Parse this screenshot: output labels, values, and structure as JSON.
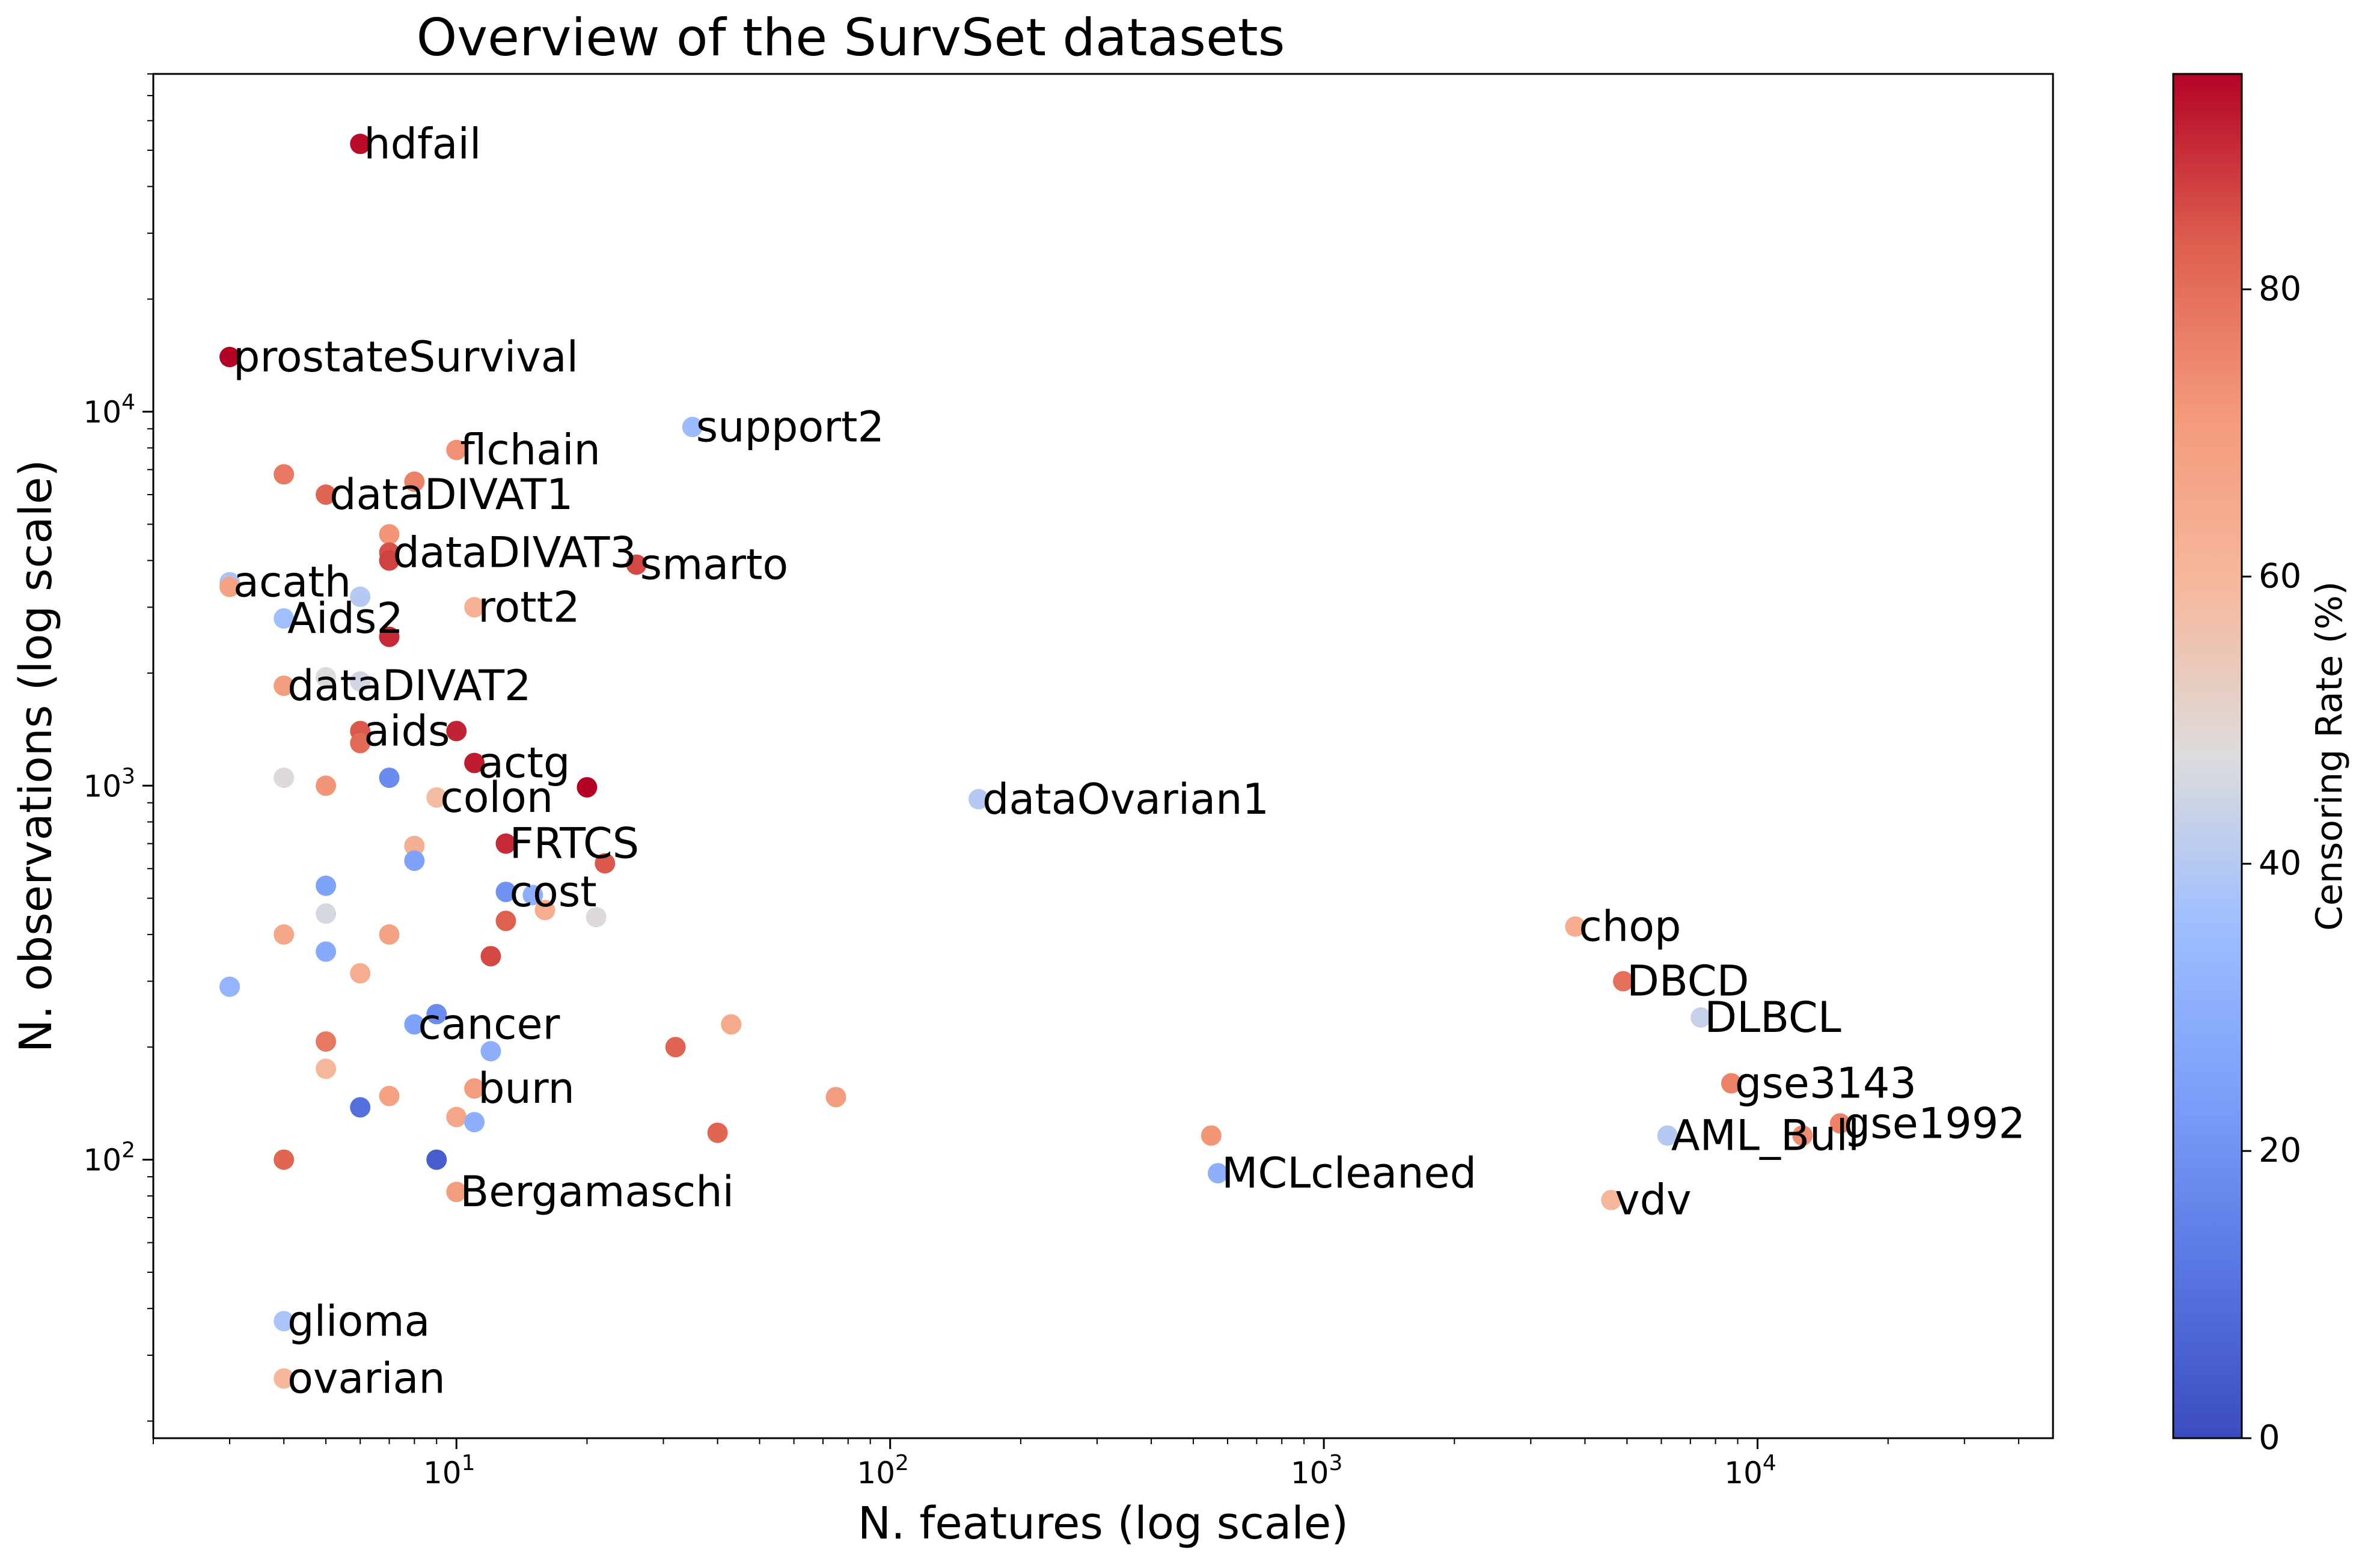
{
  "chart_data": {
    "type": "scatter",
    "title": "Overview of the SurvSet datasets",
    "xlabel": "N. features (log scale)",
    "ylabel": "N. observations (log scale)",
    "x_scale": "log",
    "y_scale": "log",
    "xlim": [
      2.0,
      48000
    ],
    "ylim": [
      18,
      80000
    ],
    "x_ticks": [
      {
        "value": 10,
        "label_base": "10",
        "label_exp": "1"
      },
      {
        "value": 100,
        "label_base": "10",
        "label_exp": "2"
      },
      {
        "value": 1000,
        "label_base": "10",
        "label_exp": "3"
      },
      {
        "value": 10000,
        "label_base": "10",
        "label_exp": "4"
      }
    ],
    "y_ticks": [
      {
        "value": 100,
        "label_base": "10",
        "label_exp": "2"
      },
      {
        "value": 1000,
        "label_base": "10",
        "label_exp": "3"
      },
      {
        "value": 10000,
        "label_base": "10",
        "label_exp": "4"
      }
    ],
    "colorbar": {
      "label": "Censoring Rate (%)",
      "min": 0,
      "max": 95,
      "ticks": [
        0,
        20,
        40,
        60,
        80
      ],
      "colormap": "coolwarm"
    },
    "grid": false,
    "points": [
      {
        "x": 6,
        "y": 52000,
        "c": 94,
        "label": "hdfail"
      },
      {
        "x": 3,
        "y": 14000,
        "c": 95,
        "label": "prostateSurvival"
      },
      {
        "x": 35,
        "y": 9100,
        "c": 35,
        "label": "support2"
      },
      {
        "x": 10,
        "y": 7900,
        "c": 73,
        "label": "flchain"
      },
      {
        "x": 4,
        "y": 6800,
        "c": 78,
        "label": ""
      },
      {
        "x": 8,
        "y": 6500,
        "c": 76,
        "label": ""
      },
      {
        "x": 5,
        "y": 6000,
        "c": 82,
        "label": "dataDIVAT1"
      },
      {
        "x": 7,
        "y": 4700,
        "c": 72,
        "label": ""
      },
      {
        "x": 7,
        "y": 4200,
        "c": 85,
        "label": "dataDIVAT3"
      },
      {
        "x": 7,
        "y": 4000,
        "c": 87,
        "label": ""
      },
      {
        "x": 26,
        "y": 3900,
        "c": 86,
        "label": "smarto"
      },
      {
        "x": 3,
        "y": 3500,
        "c": 38,
        "label": "acath"
      },
      {
        "x": 3,
        "y": 3400,
        "c": 68,
        "label": ""
      },
      {
        "x": 6,
        "y": 3200,
        "c": 40,
        "label": ""
      },
      {
        "x": 11,
        "y": 3000,
        "c": 62,
        "label": "rott2"
      },
      {
        "x": 4,
        "y": 2800,
        "c": 36,
        "label": "Aids2"
      },
      {
        "x": 7,
        "y": 2500,
        "c": 90,
        "label": ""
      },
      {
        "x": 5,
        "y": 1950,
        "c": 47,
        "label": ""
      },
      {
        "x": 6,
        "y": 1900,
        "c": 45,
        "label": ""
      },
      {
        "x": 4,
        "y": 1850,
        "c": 70,
        "label": "dataDIVAT2"
      },
      {
        "x": 6,
        "y": 1400,
        "c": 84,
        "label": "aids"
      },
      {
        "x": 10,
        "y": 1400,
        "c": 91,
        "label": ""
      },
      {
        "x": 6,
        "y": 1300,
        "c": 81,
        "label": ""
      },
      {
        "x": 11,
        "y": 1150,
        "c": 92,
        "label": "actg"
      },
      {
        "x": 4,
        "y": 1050,
        "c": 48,
        "label": ""
      },
      {
        "x": 7,
        "y": 1050,
        "c": 18,
        "label": ""
      },
      {
        "x": 5,
        "y": 1000,
        "c": 72,
        "label": ""
      },
      {
        "x": 20,
        "y": 990,
        "c": 96,
        "label": ""
      },
      {
        "x": 9,
        "y": 930,
        "c": 58,
        "label": "colon"
      },
      {
        "x": 160,
        "y": 920,
        "c": 40,
        "label": "dataOvarian1"
      },
      {
        "x": 13,
        "y": 700,
        "c": 90,
        "label": "FRTCS"
      },
      {
        "x": 8,
        "y": 690,
        "c": 63,
        "label": ""
      },
      {
        "x": 8,
        "y": 630,
        "c": 25,
        "label": ""
      },
      {
        "x": 22,
        "y": 620,
        "c": 84,
        "label": ""
      },
      {
        "x": 5,
        "y": 540,
        "c": 25,
        "label": ""
      },
      {
        "x": 13,
        "y": 520,
        "c": 20,
        "label": "cost"
      },
      {
        "x": 15,
        "y": 510,
        "c": 30,
        "label": ""
      },
      {
        "x": 16,
        "y": 465,
        "c": 64,
        "label": ""
      },
      {
        "x": 5,
        "y": 455,
        "c": 46,
        "label": ""
      },
      {
        "x": 21,
        "y": 445,
        "c": 48,
        "label": ""
      },
      {
        "x": 13,
        "y": 435,
        "c": 83,
        "label": ""
      },
      {
        "x": 3800,
        "y": 420,
        "c": 64,
        "label": "chop"
      },
      {
        "x": 4,
        "y": 400,
        "c": 66,
        "label": ""
      },
      {
        "x": 7,
        "y": 400,
        "c": 68,
        "label": ""
      },
      {
        "x": 5,
        "y": 360,
        "c": 28,
        "label": ""
      },
      {
        "x": 12,
        "y": 350,
        "c": 86,
        "label": ""
      },
      {
        "x": 6,
        "y": 315,
        "c": 64,
        "label": ""
      },
      {
        "x": 4900,
        "y": 300,
        "c": 80,
        "label": "DBCD"
      },
      {
        "x": 3,
        "y": 290,
        "c": 32,
        "label": ""
      },
      {
        "x": 9,
        "y": 245,
        "c": 18,
        "label": ""
      },
      {
        "x": 7400,
        "y": 240,
        "c": 43,
        "label": "DLBCL"
      },
      {
        "x": 8,
        "y": 230,
        "c": 25,
        "label": "cancer"
      },
      {
        "x": 43,
        "y": 230,
        "c": 65,
        "label": ""
      },
      {
        "x": 5,
        "y": 207,
        "c": 78,
        "label": ""
      },
      {
        "x": 32,
        "y": 200,
        "c": 82,
        "label": ""
      },
      {
        "x": 12,
        "y": 195,
        "c": 30,
        "label": ""
      },
      {
        "x": 5,
        "y": 175,
        "c": 60,
        "label": ""
      },
      {
        "x": 8700,
        "y": 160,
        "c": 76,
        "label": "gse3143"
      },
      {
        "x": 11,
        "y": 155,
        "c": 70,
        "label": "burn"
      },
      {
        "x": 7,
        "y": 148,
        "c": 68,
        "label": ""
      },
      {
        "x": 75,
        "y": 147,
        "c": 70,
        "label": ""
      },
      {
        "x": 6,
        "y": 138,
        "c": 10,
        "label": ""
      },
      {
        "x": 10,
        "y": 130,
        "c": 66,
        "label": ""
      },
      {
        "x": 11,
        "y": 126,
        "c": 30,
        "label": ""
      },
      {
        "x": 15500,
        "y": 125,
        "c": 76,
        "label": "gse1992"
      },
      {
        "x": 40,
        "y": 118,
        "c": 82,
        "label": ""
      },
      {
        "x": 550,
        "y": 116,
        "c": 72,
        "label": ""
      },
      {
        "x": 6200,
        "y": 116,
        "c": 40,
        "label": "AML_Bull"
      },
      {
        "x": 12700,
        "y": 116,
        "c": 74,
        "label": ""
      },
      {
        "x": 4,
        "y": 100,
        "c": 82,
        "label": ""
      },
      {
        "x": 9,
        "y": 100,
        "c": 5,
        "label": ""
      },
      {
        "x": 570,
        "y": 92,
        "c": 30,
        "label": "MCLcleaned"
      },
      {
        "x": 10,
        "y": 82,
        "c": 70,
        "label": "Bergamaschi"
      },
      {
        "x": 4600,
        "y": 78,
        "c": 60,
        "label": "vdv"
      },
      {
        "x": 4,
        "y": 37,
        "c": 38,
        "label": "glioma"
      },
      {
        "x": 4,
        "y": 26,
        "c": 60,
        "label": "ovarian"
      }
    ]
  }
}
